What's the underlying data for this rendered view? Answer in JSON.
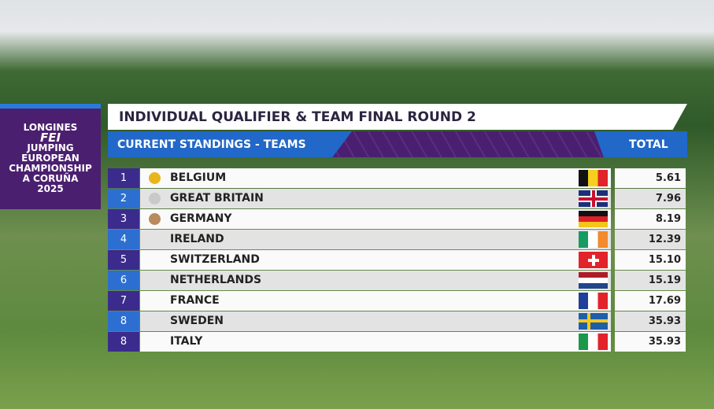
{
  "logo": {
    "lines": [
      "LONGINES",
      "FEI",
      "JUMPING",
      "EUROPEAN",
      "CHAMPIONSHIP",
      "A CORUÑA",
      "2025"
    ]
  },
  "header": {
    "title": "INDIVIDUAL QUALIFIER & TEAM FINAL ROUND 2",
    "subtitle": "CURRENT STANDINGS - TEAMS",
    "total_label": "TOTAL"
  },
  "table": {
    "rows": [
      [
        "1",
        "BELGIUM",
        "5.61"
      ],
      [
        "2",
        "GREAT BRITAIN",
        "7.96"
      ],
      [
        "3",
        "GERMANY",
        "8.19"
      ],
      [
        "4",
        "IRELAND",
        "12.39"
      ],
      [
        "5",
        "SWITZERLAND",
        "15.10"
      ],
      [
        "6",
        "NETHERLANDS",
        "15.19"
      ],
      [
        "7",
        "FRANCE",
        "17.69"
      ],
      [
        "8",
        "SWEDEN",
        "35.93"
      ],
      [
        "8",
        "ITALY",
        "35.93"
      ]
    ]
  }
}
